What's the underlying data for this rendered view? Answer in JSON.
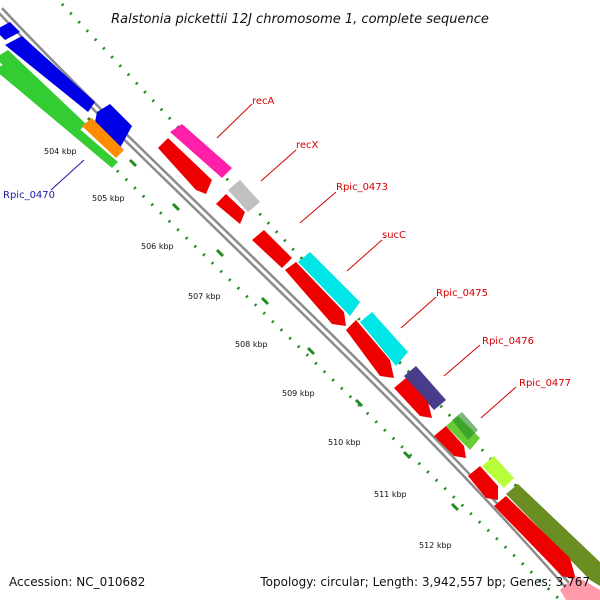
{
  "title": "Ralstonia pickettii 12J chromosome 1, complete sequence",
  "footer": {
    "accession": "Accession: NC_010682",
    "topology": "Topology: circular; Length: 3,942,557 bp; Genes: 3,767"
  },
  "colors": {
    "backbone": "#8c8c8c",
    "ticks": "#228b22"
  },
  "kbp_labels": [
    "504 kbp",
    "505 kbp",
    "506 kbp",
    "507 kbp",
    "508 kbp",
    "509 kbp",
    "510 kbp",
    "511 kbp",
    "512 kbp"
  ],
  "gene_labels": [
    {
      "text": "Rpic_0470",
      "color": "#1a1aa6"
    },
    {
      "text": "recA",
      "color": "#d40000"
    },
    {
      "text": "recX",
      "color": "#d40000"
    },
    {
      "text": "Rpic_0473",
      "color": "#d40000"
    },
    {
      "text": "sucC",
      "color": "#d40000"
    },
    {
      "text": "Rpic_0475",
      "color": "#d40000"
    },
    {
      "text": "Rpic_0476",
      "color": "#d40000"
    },
    {
      "text": "Rpic_0477",
      "color": "#d40000"
    }
  ]
}
